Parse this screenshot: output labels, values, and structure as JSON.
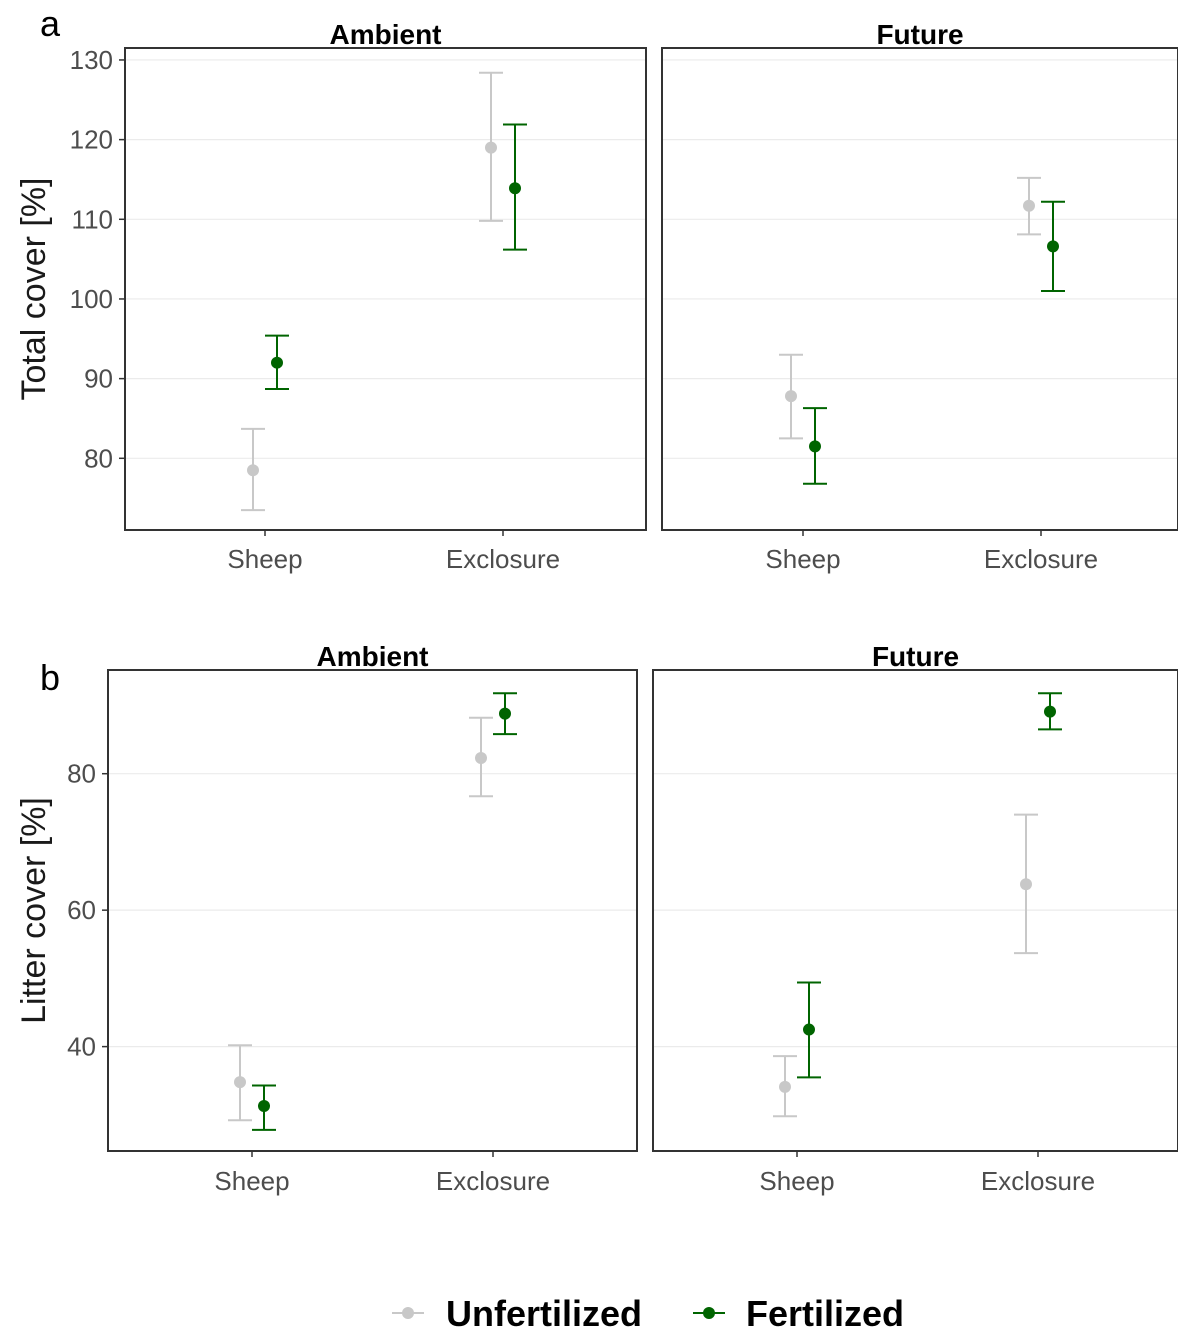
{
  "figure": {
    "panel_letters": [
      "a",
      "b"
    ],
    "legend": {
      "placement": "bottom",
      "entries": [
        {
          "label": "Unfertilized",
          "color": "#c8c8c8"
        },
        {
          "label": "Fertilized",
          "color": "#006400"
        }
      ]
    }
  },
  "chart_data": [
    {
      "type": "scatter",
      "panel": "a",
      "ylabel": "Total cover [%]",
      "yticks": [
        80,
        90,
        100,
        110,
        120,
        130
      ],
      "ylim": [
        71,
        131.5
      ],
      "categories": [
        "Sheep",
        "Exclosure"
      ],
      "facets": [
        {
          "title": "Ambient",
          "series": [
            {
              "name": "Unfertilized",
              "color": "#c8c8c8",
              "mean": [
                78.5,
                119.0
              ],
              "lower": [
                73.5,
                109.8
              ],
              "upper": [
                83.7,
                128.4
              ]
            },
            {
              "name": "Fertilized",
              "color": "#006400",
              "mean": [
                92.0,
                113.9
              ],
              "lower": [
                88.7,
                106.2
              ],
              "upper": [
                95.4,
                121.9
              ]
            }
          ]
        },
        {
          "title": "Future",
          "series": [
            {
              "name": "Unfertilized",
              "color": "#c8c8c8",
              "mean": [
                87.8,
                111.7
              ],
              "lower": [
                82.5,
                108.1
              ],
              "upper": [
                93.0,
                115.2
              ]
            },
            {
              "name": "Fertilized",
              "color": "#006400",
              "mean": [
                81.5,
                106.6
              ],
              "lower": [
                76.8,
                101.0
              ],
              "upper": [
                86.3,
                112.2
              ]
            }
          ]
        }
      ]
    },
    {
      "type": "scatter",
      "panel": "b",
      "ylabel": "Litter cover [%]",
      "yticks": [
        40,
        60,
        80
      ],
      "ylim": [
        24.7,
        95.2
      ],
      "categories": [
        "Sheep",
        "Exclosure"
      ],
      "facets": [
        {
          "title": "Ambient",
          "series": [
            {
              "name": "Unfertilized",
              "color": "#c8c8c8",
              "mean": [
                34.8,
                82.3
              ],
              "lower": [
                29.2,
                76.7
              ],
              "upper": [
                40.2,
                88.2
              ]
            },
            {
              "name": "Fertilized",
              "color": "#006400",
              "mean": [
                31.3,
                88.8
              ],
              "lower": [
                27.8,
                85.8
              ],
              "upper": [
                34.3,
                91.8
              ]
            }
          ]
        },
        {
          "title": "Future",
          "series": [
            {
              "name": "Unfertilized",
              "color": "#c8c8c8",
              "mean": [
                34.1,
                63.8
              ],
              "lower": [
                29.8,
                53.7
              ],
              "upper": [
                38.6,
                74.0
              ]
            },
            {
              "name": "Fertilized",
              "color": "#006400",
              "mean": [
                42.5,
                89.1
              ],
              "lower": [
                35.5,
                86.5
              ],
              "upper": [
                49.4,
                91.8
              ]
            }
          ]
        }
      ]
    }
  ]
}
